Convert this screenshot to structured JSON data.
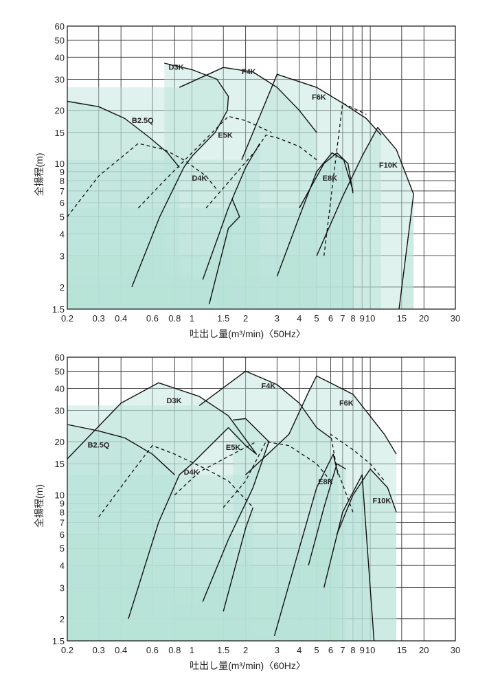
{
  "colors": {
    "fill": "#b7e2d8",
    "line": "#111111",
    "grid": "#333333"
  },
  "chart_data": [
    {
      "type": "line",
      "title": "",
      "xlabel": "吐出し量(m³/min)〈50Hz〉",
      "ylabel": "全揚程(m)",
      "xscale": "log",
      "yscale": "log",
      "xlim": [
        0.2,
        30
      ],
      "ylim": [
        1.5,
        60
      ],
      "xticks": [
        0.2,
        0.3,
        0.4,
        0.6,
        0.8,
        1,
        1.5,
        2,
        3,
        4,
        5,
        6,
        7,
        8,
        9,
        10,
        15,
        20,
        30
      ],
      "xtick_labels": [
        "0.2",
        "0.3",
        "0.4",
        "0.6",
        "0.8",
        "1",
        "1.5",
        "2",
        "3",
        "4",
        "5",
        "6",
        "7",
        "8",
        "9",
        "10",
        "15",
        "20",
        "30"
      ],
      "yticks": [
        1.5,
        2,
        3,
        4,
        5,
        6,
        7,
        8,
        9,
        10,
        15,
        20,
        30,
        40,
        50,
        60
      ],
      "ytick_labels": [
        "1.5",
        "2",
        "3",
        "4",
        "5",
        "6",
        "7",
        "8",
        "9",
        "10",
        "15",
        "20",
        "30",
        "40",
        "50",
        "60"
      ],
      "grid": true,
      "series": [
        {
          "name": "B2.5Q",
          "style": "solid",
          "points": [
            [
              0.2,
              22.5
            ],
            [
              0.3,
              21
            ],
            [
              0.42,
              18
            ],
            [
              0.58,
              14
            ],
            [
              0.73,
              11.5
            ],
            [
              0.85,
              9.5
            ]
          ],
          "label_at": [
            0.46,
            17
          ]
        },
        {
          "name": "D3K",
          "style": "solid",
          "points": [
            [
              0.46,
              2.0
            ],
            [
              0.66,
              5.0
            ],
            [
              0.9,
              9.5
            ],
            [
              1.0,
              11
            ],
            [
              1.35,
              15
            ],
            [
              1.58,
              20
            ],
            [
              1.6,
              24
            ],
            [
              1.38,
              30
            ],
            [
              1.0,
              34
            ],
            [
              0.7,
              37
            ]
          ],
          "label_at": [
            0.74,
            34
          ]
        },
        {
          "name": "D4K",
          "style": "dashed",
          "points": [
            [
              0.2,
              5.0
            ],
            [
              0.3,
              8.5
            ],
            [
              0.5,
              13
            ],
            [
              0.7,
              12
            ],
            [
              0.9,
              10.5
            ],
            [
              1.2,
              8.5
            ],
            [
              1.4,
              7.0
            ]
          ],
          "label_at": [
            1.0,
            8.0
          ]
        },
        {
          "name": "D4K-lower",
          "style": "solid",
          "points": [
            [
              1.25,
              1.6
            ],
            [
              1.6,
              4.3
            ],
            [
              1.85,
              5.0
            ],
            [
              1.68,
              6.3
            ]
          ]
        },
        {
          "name": "E5K",
          "style": "dashed",
          "points": [
            [
              0.5,
              5.6
            ],
            [
              0.7,
              8.0
            ],
            [
              1.0,
              11.5
            ],
            [
              1.3,
              15
            ],
            [
              1.6,
              18.5
            ],
            [
              2.0,
              17.5
            ],
            [
              2.8,
              15
            ]
          ],
          "label_at": [
            1.4,
            14
          ]
        },
        {
          "name": "E5K-lower",
          "style": "solid",
          "points": [
            [
              1.15,
              2.2
            ],
            [
              1.6,
              5.6
            ],
            [
              2.0,
              9.5
            ],
            [
              2.4,
              13
            ]
          ]
        },
        {
          "name": "F4K",
          "style": "solid",
          "points": [
            [
              0.85,
              27
            ],
            [
              1.5,
              35
            ],
            [
              2.2,
              33
            ],
            [
              3.0,
              27
            ],
            [
              4.0,
              20
            ],
            [
              5.0,
              15
            ]
          ],
          "label_at": [
            1.9,
            32
          ]
        },
        {
          "name": "E8K",
          "style": "dashed",
          "points": [
            [
              1.2,
              5.6
            ],
            [
              1.8,
              9.0
            ],
            [
              2.3,
              12
            ],
            [
              2.6,
              14.5
            ],
            [
              3.0,
              14
            ],
            [
              4.0,
              12.5
            ],
            [
              5.0,
              10.5
            ]
          ],
          "label_at": [
            5.4,
            8.0
          ]
        },
        {
          "name": "E8K-lower",
          "style": "solid",
          "points": [
            [
              3.0,
              2.3
            ],
            [
              4.0,
              5.0
            ],
            [
              5.0,
              9.0
            ],
            [
              6.1,
              11.5
            ],
            [
              7.1,
              10.5
            ],
            [
              8.0,
              7.0
            ]
          ]
        },
        {
          "name": "F6K",
          "style": "solid",
          "points": [
            [
              1.9,
              10.5
            ],
            [
              3.0,
              32
            ],
            [
              5.0,
              27
            ],
            [
              7.0,
              22
            ],
            [
              9.5,
              18
            ],
            [
              11.5,
              14.5
            ]
          ],
          "label_at": [
            4.7,
            23
          ]
        },
        {
          "name": "F6K-lower",
          "style": "solid",
          "points": [
            [
              4.0,
              5.6
            ],
            [
              5.5,
              10
            ],
            [
              6.5,
              11.5
            ],
            [
              7.5,
              10
            ],
            [
              8.0,
              6.8
            ]
          ]
        },
        {
          "name": "F10K",
          "style": "solid",
          "points": [
            [
              5.0,
              3.0
            ],
            [
              7.0,
              6.5
            ],
            [
              9.0,
              11
            ],
            [
              11,
              16
            ],
            [
              14,
              12
            ],
            [
              17.5,
              6.7
            ]
          ],
          "label_at": [
            11.2,
            9.5
          ]
        },
        {
          "name": "F10K-dash",
          "style": "dashed",
          "points": [
            [
              5.5,
              3.0
            ],
            [
              6.5,
              12
            ],
            [
              7.0,
              22
            ],
            [
              9.5,
              19
            ]
          ]
        },
        {
          "name": "F10K-lower",
          "style": "solid",
          "points": [
            [
              14.5,
              1.5
            ],
            [
              17.5,
              6.7
            ]
          ]
        }
      ]
    },
    {
      "type": "line",
      "title": "",
      "xlabel": "吐出し量(m³/min)〈60Hz〉",
      "ylabel": "全揚程(m)",
      "xscale": "log",
      "yscale": "log",
      "xlim": [
        0.2,
        30
      ],
      "ylim": [
        1.5,
        60
      ],
      "xticks": [
        0.2,
        0.3,
        0.4,
        0.6,
        0.8,
        1,
        1.5,
        2,
        3,
        4,
        5,
        6,
        7,
        8,
        9,
        10,
        15,
        20,
        30
      ],
      "xtick_labels": [
        "0.2",
        "0.3",
        "0.4",
        "0.6",
        "0.8",
        "1",
        "1.5",
        "2",
        "3",
        "4",
        "5",
        "6",
        "7",
        "8",
        "9",
        "10",
        "15",
        "20",
        "30"
      ],
      "yticks": [
        1.5,
        2,
        3,
        4,
        5,
        6,
        7,
        8,
        9,
        10,
        15,
        20,
        30,
        40,
        50,
        60
      ],
      "ytick_labels": [
        "1.5",
        "2",
        "3",
        "4",
        "5",
        "6",
        "7",
        "8",
        "9",
        "10",
        "15",
        "20",
        "30",
        "40",
        "50",
        "60"
      ],
      "grid": true,
      "series": [
        {
          "name": "B2.5Q",
          "style": "solid",
          "points": [
            [
              0.2,
              25
            ],
            [
              0.3,
              23
            ],
            [
              0.42,
              21
            ],
            [
              0.6,
              17
            ],
            [
              0.8,
              13
            ]
          ],
          "label_at": [
            0.26,
            18.5
          ]
        },
        {
          "name": "D3K",
          "style": "solid",
          "points": [
            [
              0.44,
              2.0
            ],
            [
              0.65,
              7.0
            ],
            [
              0.85,
              13
            ],
            [
              1.0,
              15
            ],
            [
              1.6,
              24
            ],
            [
              2.0,
              19
            ],
            [
              2.3,
              17
            ],
            [
              1.6,
              28
            ],
            [
              1.1,
              36
            ],
            [
              0.65,
              43
            ],
            [
              0.4,
              33
            ],
            [
              0.2,
              16
            ]
          ],
          "label_at": [
            0.72,
            33
          ]
        },
        {
          "name": "D4K",
          "style": "dashed",
          "points": [
            [
              0.3,
              7.5
            ],
            [
              0.45,
              13
            ],
            [
              0.6,
              19
            ],
            [
              0.8,
              17
            ],
            [
              1.2,
              14
            ],
            [
              1.6,
              12
            ],
            [
              2.2,
              8.5
            ]
          ],
          "label_at": [
            0.9,
            13
          ]
        },
        {
          "name": "D4K-lower",
          "style": "solid",
          "points": [
            [
              1.5,
              2.2
            ],
            [
              2.0,
              6.5
            ],
            [
              2.2,
              8.5
            ]
          ]
        },
        {
          "name": "E5K",
          "style": "dashed",
          "points": [
            [
              0.8,
              10
            ],
            [
              1.1,
              13.5
            ],
            [
              1.6,
              16.5
            ],
            [
              2.3,
              20
            ]
          ],
          "label_at": [
            1.55,
            18
          ]
        },
        {
          "name": "E5K-lower",
          "style": "solid",
          "points": [
            [
              1.15,
              2.5
            ],
            [
              1.6,
              5.6
            ],
            [
              2.2,
              11
            ],
            [
              2.7,
              20
            ],
            [
              2.0,
              27
            ],
            [
              1.7,
              26.5
            ]
          ]
        },
        {
          "name": "F4K",
          "style": "solid",
          "points": [
            [
              1.1,
              32
            ],
            [
              2.0,
              50
            ],
            [
              3.0,
              42
            ],
            [
              4.0,
              33
            ],
            [
              5.0,
              24
            ],
            [
              6.0,
              21
            ]
          ],
          "label_at": [
            2.45,
            40
          ]
        },
        {
          "name": "E8K",
          "style": "dashed",
          "points": [
            [
              1.5,
              8.5
            ],
            [
              2.0,
              12
            ],
            [
              2.6,
              20
            ],
            [
              3.5,
              19
            ],
            [
              5.0,
              15
            ],
            [
              6.0,
              12
            ]
          ],
          "label_at": [
            5.1,
            11.5
          ]
        },
        {
          "name": "E8K-lower",
          "style": "solid",
          "points": [
            [
              2.9,
              1.6
            ],
            [
              4.0,
              5.0
            ],
            [
              5.0,
              11
            ],
            [
              6.2,
              17
            ],
            [
              6.6,
              13
            ]
          ]
        },
        {
          "name": "F6K",
          "style": "solid",
          "points": [
            [
              2.0,
              13
            ],
            [
              3.5,
              22
            ],
            [
              4.5,
              38
            ],
            [
              5.0,
              47
            ],
            [
              8.0,
              37
            ],
            [
              12,
              22
            ],
            [
              14,
              17
            ]
          ],
          "label_at": [
            6.7,
            32
          ]
        },
        {
          "name": "F6K-lower",
          "style": "solid",
          "points": [
            [
              4.5,
              4.0
            ],
            [
              5.5,
              8.5
            ],
            [
              6.5,
              15
            ],
            [
              7.3,
              14
            ]
          ]
        },
        {
          "name": "F10K",
          "style": "solid",
          "points": [
            [
              6.5,
              6.0
            ],
            [
              8.0,
              10
            ],
            [
              10,
              14
            ],
            [
              12.5,
              11
            ],
            [
              14,
              8.0
            ]
          ],
          "label_at": [
            10.3,
            9.0
          ]
        },
        {
          "name": "F10K-dash",
          "style": "dashed",
          "points": [
            [
              8.0,
              8.0
            ],
            [
              6.5,
              14
            ],
            [
              6.0,
              22
            ],
            [
              8.0,
              18
            ],
            [
              10,
              15
            ],
            [
              12,
              12
            ]
          ]
        },
        {
          "name": "F10K-lower",
          "style": "solid",
          "points": [
            [
              5.5,
              3.0
            ],
            [
              7.0,
              8.0
            ],
            [
              9.0,
              13
            ],
            [
              10.5,
              1.5
            ]
          ]
        }
      ]
    }
  ]
}
